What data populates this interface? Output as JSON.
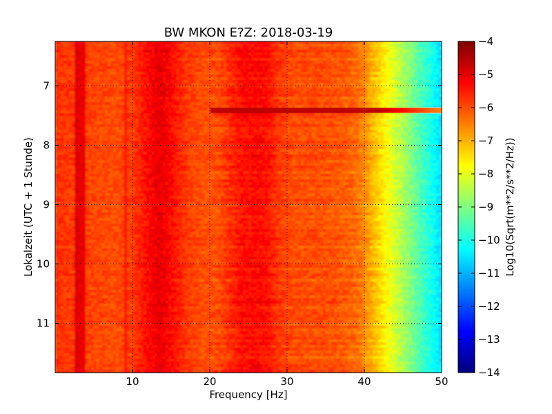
{
  "chart_data": {
    "type": "heatmap",
    "title": "BW MKON E?Z: 2018-03-19",
    "xlabel": "Frequency [Hz]",
    "ylabel": "Lokalzeit (UTC + 1 Stunde)",
    "xlim": [
      0,
      50
    ],
    "ylim": [
      6.25,
      11.83
    ],
    "y_inverted": true,
    "x_ticks": [
      10,
      20,
      30,
      40,
      50
    ],
    "y_ticks": [
      7,
      8,
      9,
      10,
      11
    ],
    "grid": true,
    "colormap": "jet",
    "colorbar": {
      "label": "Log10(Sqrt(m**2/s**2/Hz))",
      "range": [
        -14,
        -4
      ],
      "ticks": [
        -4,
        -5,
        -6,
        -7,
        -8,
        -9,
        -10,
        -11,
        -12,
        -13,
        -14
      ]
    },
    "spectrum_profile": {
      "frequency_hz": [
        0,
        2,
        5,
        8,
        10,
        12,
        13.5,
        15,
        17,
        19,
        21,
        22.5,
        24,
        26,
        27.5,
        29,
        31,
        34,
        37,
        39,
        40,
        41,
        42,
        43,
        44,
        45,
        46,
        47,
        48,
        49,
        50
      ],
      "log10_amplitude": [
        -5.7,
        -5.8,
        -5.9,
        -6.0,
        -5.8,
        -5.3,
        -5.0,
        -5.3,
        -5.8,
        -6.0,
        -6.0,
        -5.7,
        -5.4,
        -5.3,
        -5.4,
        -5.8,
        -6.0,
        -6.0,
        -6.1,
        -6.3,
        -6.6,
        -7.0,
        -7.4,
        -7.8,
        -8.2,
        -8.6,
        -9.0,
        -9.4,
        -9.8,
        -10.2,
        -10.6
      ]
    },
    "annotations": [
      {
        "type": "horizontal-band",
        "time_h": 7.4,
        "freq_range_hz": [
          20,
          50
        ],
        "log10_amplitude": -4.6
      },
      {
        "type": "vertical-line",
        "freq_hz": 2.8,
        "log10_amplitude": -4.8
      },
      {
        "type": "vertical-line",
        "freq_hz": 3.6,
        "log10_amplitude": -4.9
      },
      {
        "type": "vertical-line",
        "freq_hz": 9.0,
        "log10_amplitude": -5.2
      }
    ]
  }
}
